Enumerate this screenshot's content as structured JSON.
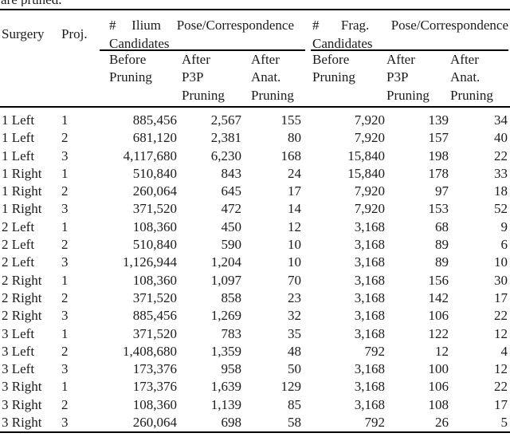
{
  "caption_fragment": "are pruned.",
  "colors": {
    "text": "#1b1b1b",
    "rule": "#000000",
    "background": "#ffffff"
  },
  "table": {
    "headers": {
      "surgery": "Surgery",
      "proj": "Proj.",
      "ilium_group": "# Ilium Pose/Correspondence Candidates",
      "frag_group": "# Frag. Pose/Correspondence Candidates",
      "sub": [
        "Before Pruning",
        "After P3P Pruning",
        "After Anat. Pruning",
        "Before Pruning",
        "After P3P Pruning",
        "After Anat. Pruning"
      ]
    },
    "rows": [
      [
        "1 Left",
        "1",
        "885,456",
        "2,567",
        "155",
        "7,920",
        "139",
        "34"
      ],
      [
        "1 Left",
        "2",
        "681,120",
        "2,381",
        "80",
        "7,920",
        "157",
        "40"
      ],
      [
        "1 Left",
        "3",
        "4,117,680",
        "6,230",
        "168",
        "15,840",
        "198",
        "22"
      ],
      [
        "1 Right",
        "1",
        "510,840",
        "843",
        "24",
        "15,840",
        "178",
        "33"
      ],
      [
        "1 Right",
        "2",
        "260,064",
        "645",
        "17",
        "7,920",
        "97",
        "18"
      ],
      [
        "1 Right",
        "3",
        "371,520",
        "472",
        "14",
        "7,920",
        "153",
        "52"
      ],
      [
        "2 Left",
        "1",
        "108,360",
        "450",
        "12",
        "3,168",
        "68",
        "9"
      ],
      [
        "2 Left",
        "2",
        "510,840",
        "590",
        "10",
        "3,168",
        "89",
        "6"
      ],
      [
        "2 Left",
        "3",
        "1,126,944",
        "1,204",
        "10",
        "3,168",
        "89",
        "10"
      ],
      [
        "2 Right",
        "1",
        "108,360",
        "1,097",
        "70",
        "3,168",
        "156",
        "30"
      ],
      [
        "2 Right",
        "2",
        "371,520",
        "858",
        "23",
        "3,168",
        "142",
        "17"
      ],
      [
        "2 Right",
        "3",
        "885,456",
        "1,269",
        "32",
        "3,168",
        "106",
        "22"
      ],
      [
        "3 Left",
        "1",
        "371,520",
        "783",
        "35",
        "3,168",
        "122",
        "12"
      ],
      [
        "3 Left",
        "2",
        "1,408,680",
        "1,359",
        "48",
        "792",
        "12",
        "4"
      ],
      [
        "3 Left",
        "3",
        "173,376",
        "958",
        "50",
        "3,168",
        "100",
        "12"
      ],
      [
        "3 Right",
        "1",
        "173,376",
        "1,639",
        "129",
        "3,168",
        "106",
        "22"
      ],
      [
        "3 Right",
        "2",
        "108,360",
        "1,139",
        "85",
        "3,168",
        "108",
        "17"
      ],
      [
        "3 Right",
        "3",
        "260,064",
        "698",
        "58",
        "792",
        "26",
        "5"
      ]
    ]
  }
}
